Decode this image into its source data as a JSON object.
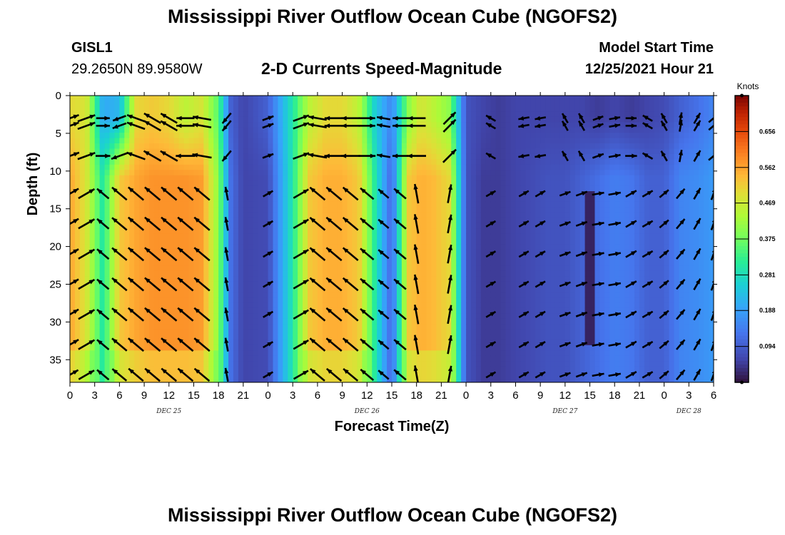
{
  "header": {
    "title": "Mississippi River Outflow Ocean Cube (NGOFS2)",
    "station_id": "GISL1",
    "station_coords": "29.2650N  89.9580W",
    "plot_title": "2-D Currents Speed-Magnitude",
    "start_label": "Model Start Time",
    "start_value": "12/25/2021 Hour 21"
  },
  "footer": {
    "title": "Mississippi River Outflow Ocean Cube (NGOFS2)"
  },
  "chart_data": {
    "type": "heatmap",
    "xlabel": "Forecast Time(Z)",
    "ylabel": "Depth (ft)",
    "x_unit": "hours from Dec 25 00Z",
    "xlim": [
      0,
      78
    ],
    "ylim": [
      38,
      0
    ],
    "x_ticks": [
      0,
      3,
      6,
      9,
      12,
      15,
      18,
      21,
      24,
      27,
      30,
      33,
      36,
      39,
      42,
      45,
      48,
      51,
      54,
      57,
      60,
      63,
      66,
      69,
      72,
      75,
      78
    ],
    "x_tick_labels": [
      "0",
      "3",
      "6",
      "9",
      "12",
      "15",
      "18",
      "21",
      "0",
      "3",
      "6",
      "9",
      "12",
      "15",
      "18",
      "21",
      "0",
      "3",
      "6",
      "9",
      "12",
      "15",
      "18",
      "21",
      "0",
      "3",
      "6"
    ],
    "y_ticks": [
      0,
      5,
      10,
      15,
      20,
      25,
      30,
      35
    ],
    "y_tick_labels": [
      "0",
      "5",
      "10",
      "15",
      "20",
      "25",
      "30",
      "35"
    ],
    "date_labels": [
      {
        "hour": 12,
        "text": "DEC 25"
      },
      {
        "hour": 36,
        "text": "DEC 26"
      },
      {
        "hour": 60,
        "text": "DEC 27"
      },
      {
        "hour": 75,
        "text": "DEC 28"
      }
    ],
    "colorbar": {
      "unit": "Knots",
      "range": [
        0,
        0.75
      ],
      "tick_values": [
        0.094,
        0.188,
        0.281,
        0.375,
        0.469,
        0.562,
        0.656
      ],
      "tick_labels": [
        "0.094",
        "0.188",
        "0.281",
        "0.375",
        "0.469",
        "0.562",
        "0.656"
      ]
    },
    "speed_profile": {
      "hours": [
        0,
        2,
        4,
        6,
        8,
        10,
        12,
        14,
        16,
        18,
        19.5,
        21,
        24,
        27,
        29,
        31,
        33,
        35,
        37,
        39,
        41,
        42.5,
        44,
        46,
        48,
        50,
        52,
        54,
        56,
        58,
        60,
        62,
        64,
        66,
        68,
        70,
        72,
        74,
        76,
        78
      ],
      "deep_knots": [
        0.56,
        0.48,
        0.3,
        0.52,
        0.56,
        0.58,
        0.58,
        0.58,
        0.57,
        0.4,
        0.12,
        0.06,
        0.07,
        0.3,
        0.52,
        0.55,
        0.55,
        0.52,
        0.3,
        0.1,
        0.52,
        0.55,
        0.54,
        0.5,
        0.08,
        0.05,
        0.05,
        0.06,
        0.07,
        0.08,
        0.08,
        0.1,
        0.12,
        0.14,
        0.13,
        0.1,
        0.1,
        0.15,
        0.16,
        0.18
      ],
      "surface_knots": [
        0.5,
        0.48,
        0.2,
        0.22,
        0.5,
        0.52,
        0.5,
        0.45,
        0.48,
        0.35,
        0.1,
        0.06,
        0.1,
        0.3,
        0.45,
        0.5,
        0.5,
        0.45,
        0.25,
        0.15,
        0.4,
        0.48,
        0.45,
        0.4,
        0.08,
        0.06,
        0.05,
        0.06,
        0.06,
        0.06,
        0.06,
        0.06,
        0.05,
        0.06,
        0.05,
        0.06,
        0.07,
        0.1,
        0.12,
        0.15
      ]
    },
    "vectors": {
      "hours": [
        0,
        2,
        4,
        6,
        8,
        10,
        12,
        14,
        16,
        19,
        24,
        28,
        30,
        32,
        34,
        36,
        38,
        40,
        42,
        46,
        51,
        55,
        57,
        60,
        62,
        64,
        66,
        68,
        70,
        72,
        74,
        76,
        78
      ],
      "depths_ft": [
        3,
        4,
        8,
        13,
        17,
        21,
        25,
        29,
        33,
        37
      ],
      "surface_angle_deg": [
        20,
        20,
        0,
        -160,
        160,
        150,
        150,
        180,
        170,
        230,
        20,
        20,
        170,
        180,
        180,
        0,
        170,
        180,
        180,
        45,
        150,
        190,
        190,
        120,
        120,
        20,
        10,
        0,
        150,
        120,
        80,
        60,
        40
      ],
      "deep_angle_deg": [
        30,
        30,
        140,
        140,
        140,
        140,
        140,
        140,
        140,
        100,
        30,
        30,
        140,
        140,
        140,
        140,
        140,
        140,
        100,
        80,
        30,
        30,
        30,
        20,
        20,
        10,
        10,
        30,
        30,
        40,
        50,
        60,
        70
      ]
    }
  }
}
